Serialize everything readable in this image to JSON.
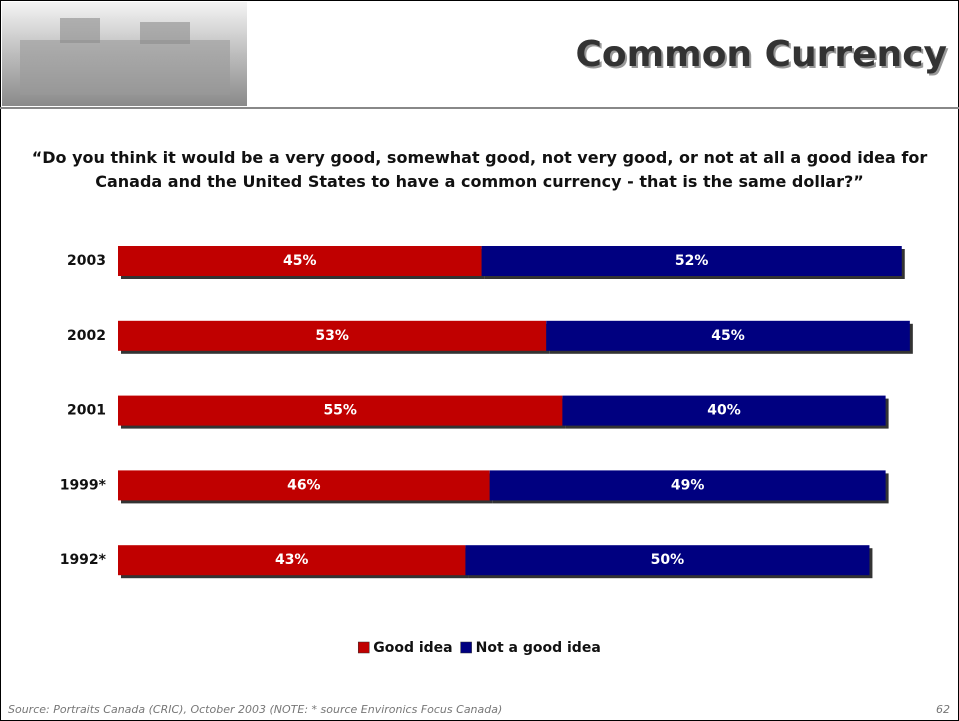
{
  "chart_data": {
    "type": "bar",
    "orientation": "horizontal",
    "stacked": true,
    "title": "Common Currency",
    "subtitle": "“Do you think it would be a very good, somewhat good, not very good, or not at all a good idea for Canada and the United States to have a common currency - that is the same dollar?”",
    "categories": [
      "2003",
      "2002",
      "2001",
      "1999*",
      "1992*"
    ],
    "series": [
      {
        "name": "Good idea",
        "color": "#c00000",
        "values": [
          45,
          53,
          55,
          46,
          43
        ],
        "value_labels": [
          "45%",
          "53%",
          "55%",
          "46%",
          "43%"
        ]
      },
      {
        "name": "Not a good idea",
        "color": "#000080",
        "values": [
          52,
          45,
          40,
          49,
          50
        ],
        "value_labels": [
          "52%",
          "45%",
          "40%",
          "49%",
          "50%"
        ]
      }
    ],
    "xlim": [
      0,
      100
    ],
    "legend": "bottom"
  },
  "footer": {
    "source": "Source: Portraits Canada (CRIC), October 2003 (NOTE:  * source Environics Focus Canada)",
    "page": "62"
  }
}
